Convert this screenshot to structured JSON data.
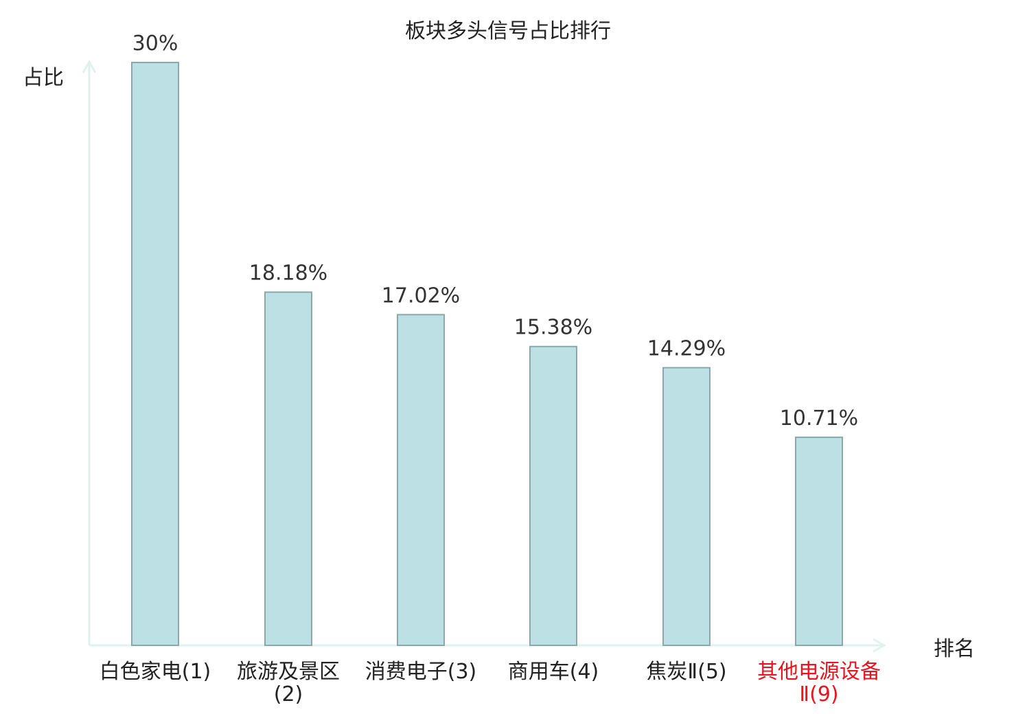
{
  "chart_data": {
    "type": "bar",
    "title": "板块多头信号占比排行",
    "ylabel": "占比",
    "xlabel": "排名",
    "categories": [
      "白色家电(1)",
      "旅游及景区(2)",
      "消费电子(3)",
      "商用车(4)",
      "焦炭Ⅱ(5)",
      "其他电源设备Ⅱ(9)"
    ],
    "values": [
      30,
      18.18,
      17.02,
      15.38,
      14.29,
      10.71
    ],
    "data_labels": [
      "30%",
      "18.18%",
      "17.02%",
      "15.38%",
      "14.29%",
      "10.71%"
    ],
    "highlight_index": 5,
    "ylim": [
      0,
      30
    ],
    "grid": false,
    "colors": {
      "bar_fill": "#bce0e3",
      "bar_stroke": "#8aa8a9",
      "axis": "#dff2ee",
      "highlight_label": "#e8141e",
      "text": "#222222"
    }
  }
}
